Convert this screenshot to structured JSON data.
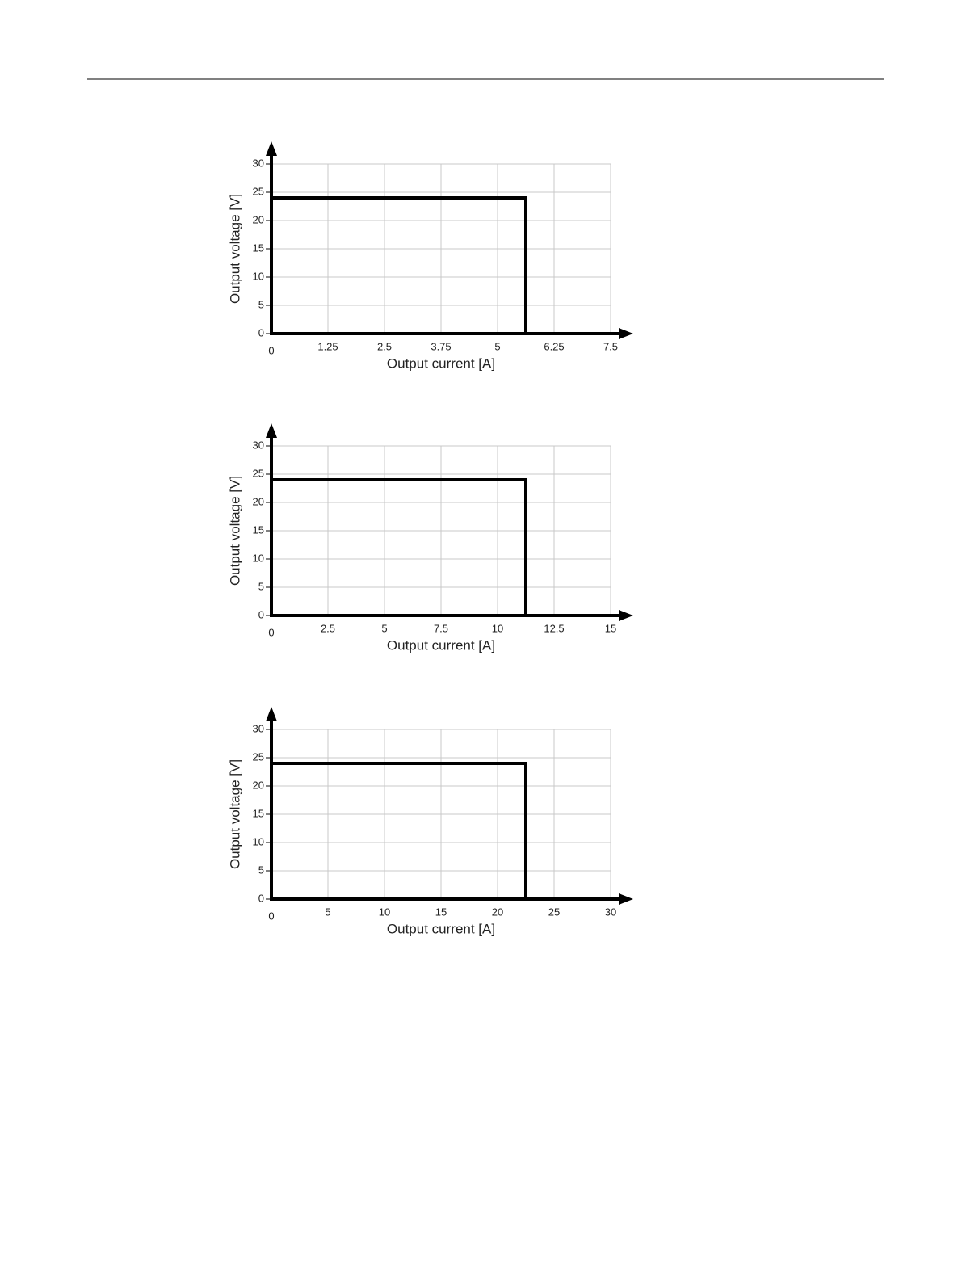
{
  "chart_data": [
    {
      "type": "line",
      "x_label": "Output current [A]",
      "y_label": "Output voltage [V]",
      "x": [
        0,
        5.625,
        5.625
      ],
      "values": [
        24,
        24,
        0
      ],
      "color": "#000000",
      "xlim": [
        0,
        7.5
      ],
      "xticks": [
        0,
        1.25,
        2.5,
        3.75,
        5,
        6.25,
        7.5
      ],
      "ylim": [
        0,
        30
      ],
      "yticks": [
        0,
        5,
        10,
        15,
        20,
        25,
        30
      ],
      "grid": true
    },
    {
      "type": "line",
      "x_label": "Output current [A]",
      "y_label": "Output voltage [V]",
      "x": [
        0,
        11.25,
        11.25
      ],
      "values": [
        24,
        24,
        0
      ],
      "color": "#000000",
      "xlim": [
        0,
        15
      ],
      "xticks": [
        0,
        2.5,
        5,
        7.5,
        10,
        12.5,
        15
      ],
      "ylim": [
        0,
        30
      ],
      "yticks": [
        0,
        5,
        10,
        15,
        20,
        25,
        30
      ],
      "grid": true
    },
    {
      "type": "line",
      "x_label": "Output current [A]",
      "y_label": "Output voltage [V]",
      "x": [
        0,
        22.5,
        22.5
      ],
      "values": [
        24,
        24,
        0
      ],
      "color": "#000000",
      "xlim": [
        0,
        30
      ],
      "xticks": [
        0,
        5,
        10,
        15,
        20,
        25,
        30
      ],
      "ylim": [
        0,
        30
      ],
      "yticks": [
        0,
        5,
        10,
        15,
        20,
        25,
        30
      ],
      "grid": true
    }
  ]
}
